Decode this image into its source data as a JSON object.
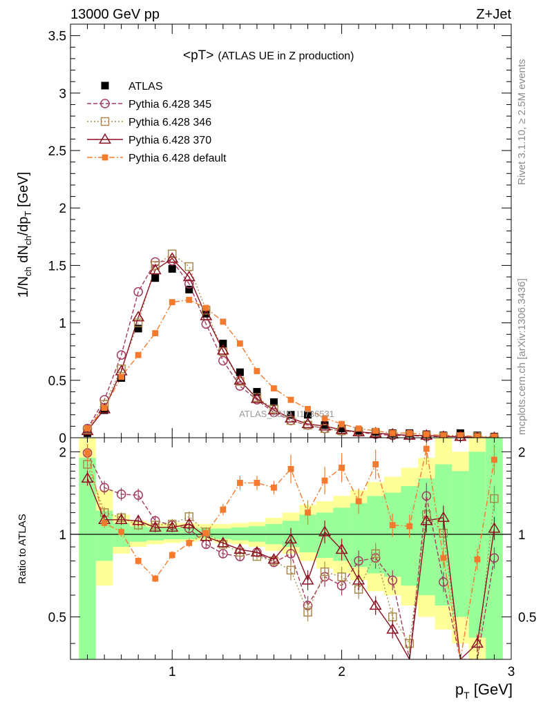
{
  "header": {
    "left": "13000 GeV pp",
    "right": "Z+Jet"
  },
  "side": {
    "top": "Rivet 3.1.10, ≥ 2.5M events",
    "bottom": "mcplots.cern.ch [arXiv:1306.3436]"
  },
  "colors": {
    "atlas": "#000000",
    "p345": "#a33a5a",
    "p346": "#a88a4a",
    "p370": "#8b1020",
    "pdef": "#f47a2e",
    "band_green": "#99ff99",
    "band_yellow": "#ffff99"
  },
  "chart_data": [
    {
      "type": "line",
      "title": "<pT>",
      "subtitle": "(ATLAS UE in Z production)",
      "watermark": "ATLAS_2019_I1736531",
      "ylabel": "1/N_ch dN_ch/dp_T [GeV]",
      "xlim": [
        0.4,
        3.0
      ],
      "ylim": [
        0,
        3.6
      ],
      "yticks": [
        "0",
        "0.5",
        "1",
        "1.5",
        "2",
        "2.5",
        "3",
        "3.5"
      ],
      "x": [
        0.5,
        0.6,
        0.7,
        0.8,
        0.9,
        1.0,
        1.1,
        1.2,
        1.3,
        1.4,
        1.5,
        1.6,
        1.7,
        1.8,
        1.9,
        2.0,
        2.1,
        2.2,
        2.3,
        2.4,
        2.5,
        2.6,
        2.7,
        2.8,
        2.9
      ],
      "series": [
        {
          "name": "ATLAS",
          "key": "atlas",
          "values": [
            0.04,
            0.24,
            0.52,
            0.95,
            1.39,
            1.47,
            1.29,
            1.08,
            0.82,
            0.57,
            0.4,
            0.31,
            0.2,
            0.2,
            0.11,
            0.08,
            0.06,
            0.05,
            0.04,
            0.04,
            0.03,
            0.02,
            0.04,
            0.02,
            0.01
          ]
        },
        {
          "name": "Pythia 6.428 345",
          "key": "p345",
          "values": [
            0.08,
            0.33,
            0.72,
            1.27,
            1.53,
            1.54,
            1.34,
            0.99,
            0.67,
            0.45,
            0.33,
            0.22,
            0.15,
            0.11,
            0.08,
            0.06,
            0.05,
            0.03,
            0.02,
            0.02,
            0.01,
            0.01,
            0.01,
            0.0,
            0.0
          ]
        },
        {
          "name": "Pythia 6.428 346",
          "key": "p346",
          "values": [
            0.07,
            0.29,
            0.6,
            1.0,
            1.5,
            1.6,
            1.49,
            1.11,
            0.75,
            0.49,
            0.35,
            0.25,
            0.15,
            0.11,
            0.08,
            0.06,
            0.05,
            0.04,
            0.03,
            0.02,
            0.02,
            0.01,
            0.01,
            0.01,
            0.0
          ]
        },
        {
          "name": "Pythia 6.428 370",
          "key": "p370",
          "values": [
            0.06,
            0.25,
            0.58,
            1.05,
            1.46,
            1.56,
            1.4,
            1.06,
            0.76,
            0.5,
            0.34,
            0.24,
            0.17,
            0.12,
            0.1,
            0.07,
            0.05,
            0.04,
            0.03,
            0.02,
            0.02,
            0.01,
            0.01,
            0.0,
            0.0
          ]
        },
        {
          "name": "Pythia 6.428 default",
          "key": "pdef",
          "values": [
            0.08,
            0.26,
            0.53,
            0.72,
            0.91,
            1.18,
            1.2,
            1.13,
            1.01,
            0.82,
            0.58,
            0.43,
            0.33,
            0.25,
            0.17,
            0.12,
            0.08,
            0.06,
            0.04,
            0.04,
            0.03,
            0.02,
            0.02,
            0.01,
            0.01
          ]
        }
      ]
    },
    {
      "type": "line",
      "ylabel": "Ratio to ATLAS",
      "xlabel": "p_T [GeV]",
      "xlim": [
        0.4,
        3.0
      ],
      "ylim": [
        0.35,
        2.25
      ],
      "xticks": [
        "1",
        "2",
        "3"
      ],
      "yticks": [
        "0.5",
        "1",
        "2"
      ],
      "reference": 1,
      "x": [
        0.5,
        0.6,
        0.7,
        0.8,
        0.9,
        1.0,
        1.1,
        1.2,
        1.3,
        1.4,
        1.5,
        1.6,
        1.7,
        1.8,
        1.9,
        2.0,
        2.1,
        2.2,
        2.3,
        2.4,
        2.5,
        2.6,
        2.7,
        2.8,
        2.9
      ],
      "bands": {
        "bin_edges": [
          0.45,
          0.55,
          0.65,
          0.75,
          0.85,
          0.95,
          1.05,
          1.15,
          1.25,
          1.35,
          1.45,
          1.55,
          1.65,
          1.75,
          1.85,
          1.95,
          2.05,
          2.15,
          2.25,
          2.35,
          2.45,
          2.55,
          2.65,
          2.75,
          2.85,
          2.95
        ],
        "yellow_low": [
          0.35,
          0.65,
          0.85,
          0.9,
          0.92,
          0.93,
          0.94,
          0.95,
          0.93,
          0.92,
          0.9,
          0.87,
          0.85,
          0.8,
          0.75,
          0.72,
          0.68,
          0.62,
          0.6,
          0.55,
          0.5,
          0.45,
          0.4,
          0.35,
          0.35
        ],
        "yellow_high": [
          2.25,
          1.45,
          1.18,
          1.12,
          1.1,
          1.1,
          1.1,
          1.09,
          1.09,
          1.1,
          1.11,
          1.15,
          1.2,
          1.28,
          1.32,
          1.38,
          1.45,
          1.55,
          1.62,
          1.75,
          1.9,
          2.25,
          2.0,
          2.25,
          2.25
        ],
        "green_low": [
          0.35,
          0.8,
          0.9,
          0.94,
          0.95,
          0.96,
          0.96,
          0.97,
          0.96,
          0.95,
          0.94,
          0.92,
          0.9,
          0.86,
          0.82,
          0.8,
          0.76,
          0.72,
          0.7,
          0.65,
          0.6,
          0.55,
          0.5,
          0.42,
          0.35
        ],
        "green_high": [
          1.9,
          1.22,
          1.1,
          1.07,
          1.06,
          1.06,
          1.06,
          1.05,
          1.05,
          1.06,
          1.07,
          1.09,
          1.12,
          1.18,
          1.2,
          1.25,
          1.3,
          1.38,
          1.42,
          1.5,
          1.6,
          1.8,
          1.7,
          2.0,
          2.25
        ]
      },
      "series": [
        {
          "name": "Pythia 6.428 345",
          "key": "p345",
          "values": [
            1.98,
            1.48,
            1.4,
            1.39,
            1.12,
            1.08,
            1.05,
            0.92,
            0.85,
            0.83,
            0.86,
            0.79,
            0.85,
            0.55,
            0.7,
            0.65,
            0.8,
            0.82,
            0.68,
            0.3,
            1.38,
            0.67,
            0.3,
            0.3,
            0.82
          ]
        },
        {
          "name": "Pythia 6.428 346",
          "key": "p346",
          "values": [
            1.8,
            1.2,
            1.15,
            1.08,
            1.08,
            1.09,
            1.16,
            1.02,
            0.92,
            0.86,
            0.83,
            0.8,
            0.74,
            0.52,
            0.73,
            0.7,
            0.63,
            0.85,
            0.5,
            0.4,
            1.18,
            1.01,
            0.3,
            0.3,
            1.35
          ]
        },
        {
          "name": "Pythia 6.428 370",
          "key": "p370",
          "values": [
            1.6,
            1.13,
            1.13,
            1.12,
            1.06,
            1.06,
            1.09,
            0.98,
            0.93,
            0.88,
            0.86,
            0.81,
            0.96,
            0.68,
            1.02,
            0.88,
            0.68,
            0.55,
            0.45,
            0.28,
            1.12,
            1.15,
            0.3,
            0.4,
            1.05
          ]
        },
        {
          "name": "Pythia 6.428 default",
          "key": "pdef",
          "values": [
            1.98,
            1.1,
            1.02,
            0.8,
            0.69,
            0.84,
            0.93,
            1.01,
            1.23,
            1.54,
            1.54,
            1.48,
            1.73,
            1.2,
            1.57,
            1.75,
            1.32,
            1.8,
            1.08,
            1.07,
            2.05,
            0.82,
            0.3,
            0.81,
            1.87
          ]
        }
      ]
    }
  ]
}
